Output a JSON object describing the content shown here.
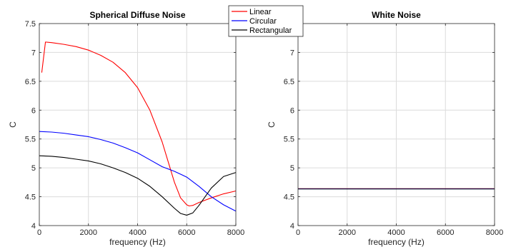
{
  "chart_data": [
    {
      "type": "line",
      "title": "Spherical Diffuse Noise",
      "xlabel": "frequency (Hz)",
      "ylabel": "C",
      "xlim": [
        0,
        8000
      ],
      "ylim": [
        4,
        7.5
      ],
      "xticks": [
        0,
        2000,
        4000,
        6000,
        8000
      ],
      "yticks": [
        4,
        4.5,
        5,
        5.5,
        6,
        6.5,
        7,
        7.5
      ],
      "ytick_labels": [
        "4",
        "4.5",
        "5",
        "5.5",
        "6",
        "6.5",
        "7",
        "7.5"
      ],
      "grid": true,
      "series": [
        {
          "name": "Linear",
          "color": "#ff0000",
          "x": [
            100,
            250,
            500,
            1000,
            1500,
            2000,
            2500,
            3000,
            3500,
            4000,
            4500,
            5000,
            5250,
            5500,
            5750,
            6000,
            6100,
            6250,
            6500,
            7000,
            7500,
            8000
          ],
          "y": [
            6.65,
            7.18,
            7.17,
            7.14,
            7.1,
            7.04,
            6.95,
            6.83,
            6.65,
            6.39,
            6.0,
            5.45,
            5.1,
            4.75,
            4.48,
            4.36,
            4.34,
            4.35,
            4.4,
            4.48,
            4.55,
            4.6
          ]
        },
        {
          "name": "Circular",
          "color": "#0000ff",
          "x": [
            0,
            500,
            1000,
            1500,
            2000,
            2500,
            3000,
            3500,
            4000,
            4500,
            5000,
            5500,
            6000,
            6500,
            7000,
            7500,
            8000
          ],
          "y": [
            5.63,
            5.62,
            5.6,
            5.57,
            5.54,
            5.49,
            5.43,
            5.35,
            5.26,
            5.14,
            5.02,
            4.94,
            4.84,
            4.68,
            4.5,
            4.36,
            4.25
          ]
        },
        {
          "name": "Rectangular",
          "color": "#000000",
          "x": [
            0,
            500,
            1000,
            1500,
            2000,
            2500,
            3000,
            3500,
            4000,
            4500,
            5000,
            5500,
            5750,
            6000,
            6250,
            6500,
            7000,
            7500,
            8000
          ],
          "y": [
            5.21,
            5.2,
            5.18,
            5.15,
            5.12,
            5.07,
            5.0,
            4.92,
            4.82,
            4.68,
            4.5,
            4.3,
            4.21,
            4.18,
            4.22,
            4.35,
            4.65,
            4.85,
            4.92
          ]
        }
      ]
    },
    {
      "type": "line",
      "title": "White Noise",
      "xlabel": "frequency (Hz)",
      "ylabel": "C",
      "xlim": [
        0,
        8000
      ],
      "ylim": [
        4,
        7.5
      ],
      "xticks": [
        0,
        2000,
        4000,
        6000,
        8000
      ],
      "yticks": [
        4,
        4.5,
        5,
        5.5,
        6,
        6.5,
        7
      ],
      "ytick_labels": [
        "4",
        "4.5",
        "5",
        "5.5",
        "6",
        "6.5",
        "7"
      ],
      "grid": true,
      "series": [
        {
          "name": "Linear",
          "color": "#ff0000",
          "x": [
            0,
            8000
          ],
          "y": [
            4.64,
            4.64
          ]
        },
        {
          "name": "Circular",
          "color": "#0000ff",
          "x": [
            0,
            8000
          ],
          "y": [
            4.637,
            4.637
          ]
        },
        {
          "name": "Rectangular",
          "color": "#000000",
          "x": [
            0,
            8000
          ],
          "y": [
            4.634,
            4.634
          ]
        }
      ]
    }
  ],
  "legend": {
    "position": "top-center",
    "entries": [
      {
        "label": "Linear",
        "color": "#ff0000"
      },
      {
        "label": "Circular",
        "color": "#0000ff"
      },
      {
        "label": "Rectangular",
        "color": "#000000"
      }
    ]
  }
}
